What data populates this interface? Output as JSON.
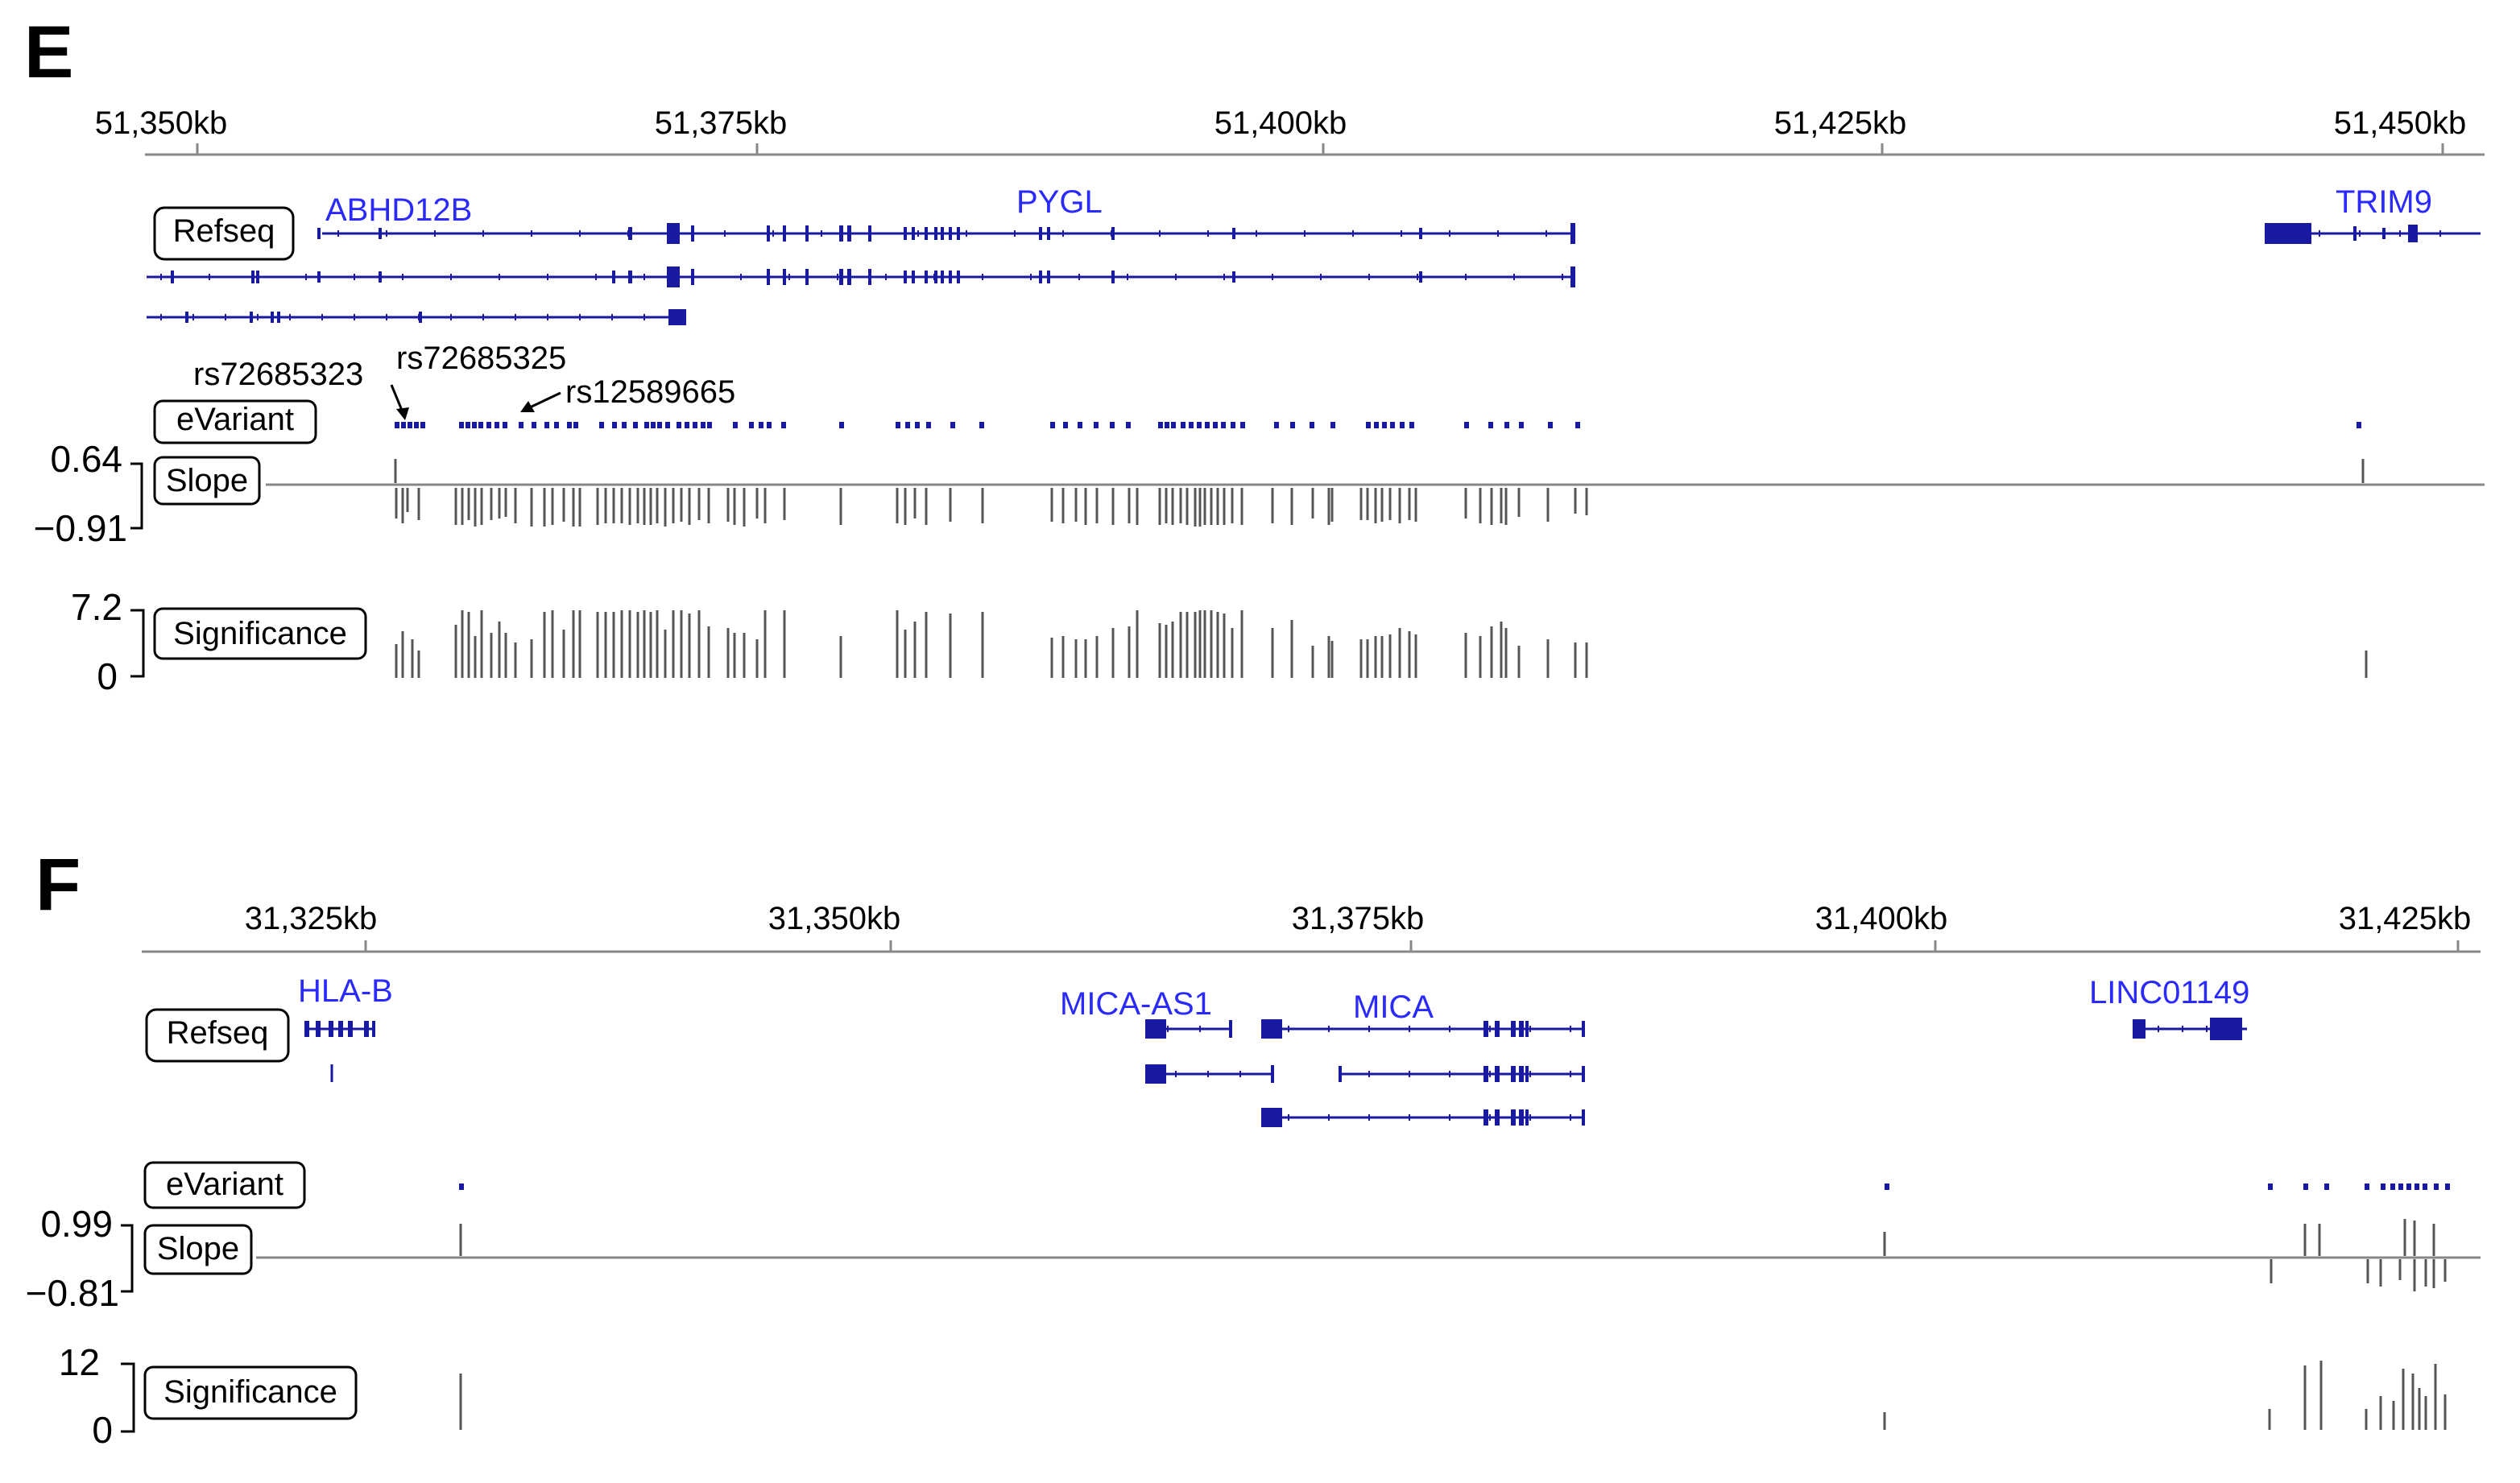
{
  "colors": {
    "gene": "#1a1aa0",
    "gene_label": "#2a2aff",
    "variant": "#1a1aa0",
    "bars": "#555555",
    "axis": "#888888",
    "text": "#000000"
  },
  "panels": [
    {
      "id": "E",
      "letter": "E",
      "range_kb": [
        51344,
        51452
      ],
      "ticks": [
        {
          "kb": 51350,
          "label": "51,350kb"
        },
        {
          "kb": 51375,
          "label": "51,375kb"
        },
        {
          "kb": 51400,
          "label": "51,400kb"
        },
        {
          "kb": 51425,
          "label": "51,425kb"
        },
        {
          "kb": 51450,
          "label": "51,450kb"
        }
      ],
      "tracks": {
        "refseq": "Refseq",
        "evariant": "eVariant",
        "slope": "Slope",
        "significance": "Significance"
      },
      "slope_range": {
        "max": "0.64",
        "min": "−0.91"
      },
      "significance_range": {
        "max": "7.2",
        "min": "0"
      },
      "genes": [
        {
          "label": "ABHD12B",
          "label_kb": 51365.5
        },
        {
          "label": "PYGL",
          "label_kb": 51389
        },
        {
          "label": "TRIM9",
          "label_kb": 51447
        }
      ],
      "snp_labels": [
        {
          "text": "rs72685323",
          "kb": 51360.8
        },
        {
          "text": "rs72685325",
          "kb": 51369.1
        },
        {
          "text": "rs12589665",
          "kb": 51371.8
        }
      ],
      "variants_kb": [
        51353.5,
        51356.3,
        51362,
        51362.3,
        51363.5
      ]
    },
    {
      "id": "F",
      "letter": "F",
      "range_kb": [
        31318.5,
        31428.3
      ],
      "ticks": [
        {
          "kb": 31325,
          "label": "31,325kb"
        },
        {
          "kb": 31350,
          "label": "31,350kb"
        },
        {
          "kb": 31375,
          "label": "31,375kb"
        },
        {
          "kb": 31400,
          "label": "31,400kb"
        },
        {
          "kb": 31425,
          "label": "31,425kb"
        }
      ],
      "tracks": {
        "refseq": "Refseq",
        "evariant": "eVariant",
        "slope": "Slope",
        "significance": "Significance"
      },
      "slope_range": {
        "max": "0.99",
        "min": "−0.81"
      },
      "significance_range": {
        "max": "12",
        "min": "0"
      },
      "genes": [
        {
          "label": "HLA-B",
          "label_kb": 31320.7
        },
        {
          "label": "MICA-AS1",
          "label_kb": 31358
        },
        {
          "label": "MICA",
          "label_kb": 31374.5
        },
        {
          "label": "LINC01149",
          "label_kb": 31413.6
        }
      ],
      "snp_labels": []
    }
  ]
}
